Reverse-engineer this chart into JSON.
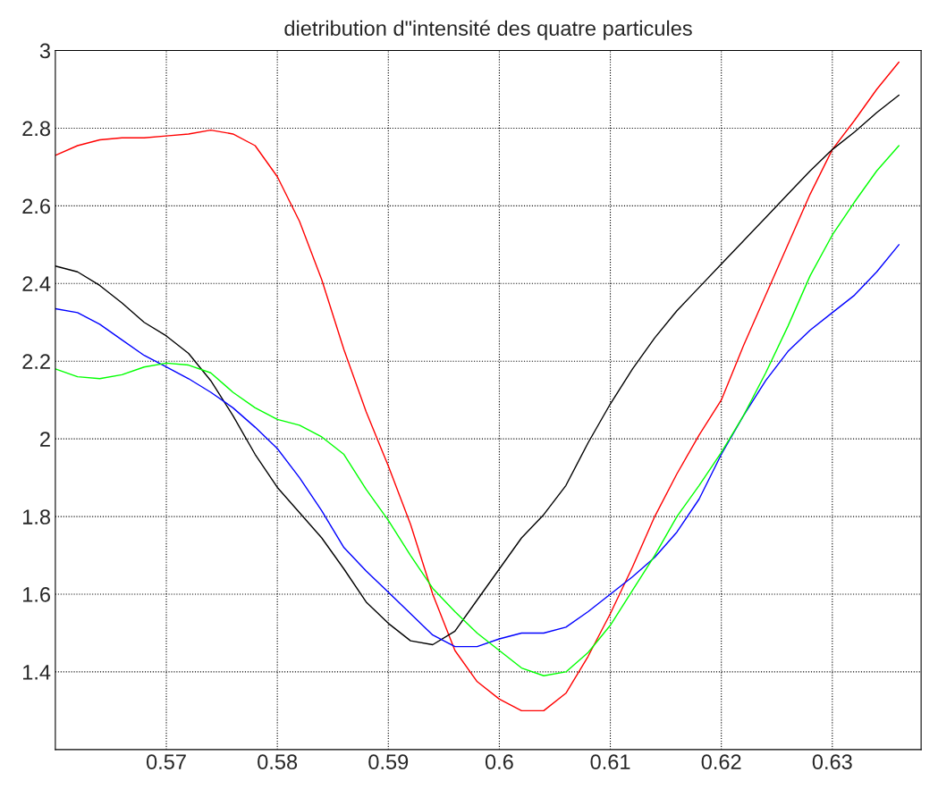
{
  "chart_data": {
    "type": "line",
    "title": "dietribution d\"intensité des quatre particules",
    "x": [
      0.56,
      0.562,
      0.564,
      0.566,
      0.568,
      0.57,
      0.572,
      0.574,
      0.576,
      0.578,
      0.58,
      0.582,
      0.584,
      0.586,
      0.588,
      0.59,
      0.592,
      0.594,
      0.596,
      0.598,
      0.6,
      0.602,
      0.604,
      0.606,
      0.608,
      0.61,
      0.612,
      0.614,
      0.616,
      0.618,
      0.62,
      0.622,
      0.624,
      0.626,
      0.628,
      0.63,
      0.632,
      0.634,
      0.636
    ],
    "series": [
      {
        "color": "#ff0000",
        "values": [
          2.73,
          2.755,
          2.77,
          2.775,
          2.775,
          2.78,
          2.785,
          2.795,
          2.785,
          2.755,
          2.675,
          2.56,
          2.41,
          2.23,
          2.07,
          1.93,
          1.78,
          1.6,
          1.455,
          1.375,
          1.33,
          1.3,
          1.3,
          1.345,
          1.44,
          1.55,
          1.67,
          1.8,
          1.91,
          2.01,
          2.1,
          2.24,
          2.37,
          2.5,
          2.63,
          2.745,
          2.82,
          2.9,
          2.97
        ]
      },
      {
        "color": "#000000",
        "values": [
          2.445,
          2.43,
          2.395,
          2.35,
          2.3,
          2.265,
          2.22,
          2.15,
          2.06,
          1.96,
          1.875,
          1.81,
          1.745,
          1.665,
          1.58,
          1.525,
          1.48,
          1.47,
          1.505,
          1.585,
          1.665,
          1.745,
          1.805,
          1.88,
          1.99,
          2.09,
          2.18,
          2.26,
          2.33,
          2.39,
          2.45,
          2.51,
          2.57,
          2.63,
          2.69,
          2.745,
          2.79,
          2.84,
          2.885
        ]
      },
      {
        "color": "#0000ff",
        "values": [
          2.335,
          2.325,
          2.295,
          2.255,
          2.215,
          2.185,
          2.155,
          2.12,
          2.08,
          2.03,
          1.975,
          1.9,
          1.815,
          1.72,
          1.66,
          1.605,
          1.55,
          1.495,
          1.465,
          1.465,
          1.485,
          1.5,
          1.5,
          1.515,
          1.555,
          1.6,
          1.645,
          1.695,
          1.76,
          1.845,
          1.96,
          2.06,
          2.15,
          2.225,
          2.28,
          2.325,
          2.37,
          2.43,
          2.5
        ]
      },
      {
        "color": "#00ff00",
        "values": [
          2.18,
          2.16,
          2.155,
          2.165,
          2.185,
          2.195,
          2.19,
          2.17,
          2.12,
          2.08,
          2.05,
          2.035,
          2.005,
          1.96,
          1.87,
          1.79,
          1.7,
          1.615,
          1.555,
          1.5,
          1.455,
          1.41,
          1.39,
          1.4,
          1.45,
          1.52,
          1.61,
          1.7,
          1.8,
          1.88,
          1.965,
          2.06,
          2.17,
          2.29,
          2.42,
          2.525,
          2.61,
          2.69,
          2.755
        ]
      }
    ],
    "xlim": [
      0.56,
      0.638
    ],
    "xticks": [
      0.57,
      0.58,
      0.59,
      0.6,
      0.61,
      0.62,
      0.63
    ],
    "ylim": [
      1.2,
      3
    ],
    "yticks": [
      1.4,
      1.6,
      1.8,
      2,
      2.2,
      2.4,
      2.6,
      2.8,
      3
    ],
    "grid": true,
    "marker": "none",
    "line_style": "solid"
  }
}
